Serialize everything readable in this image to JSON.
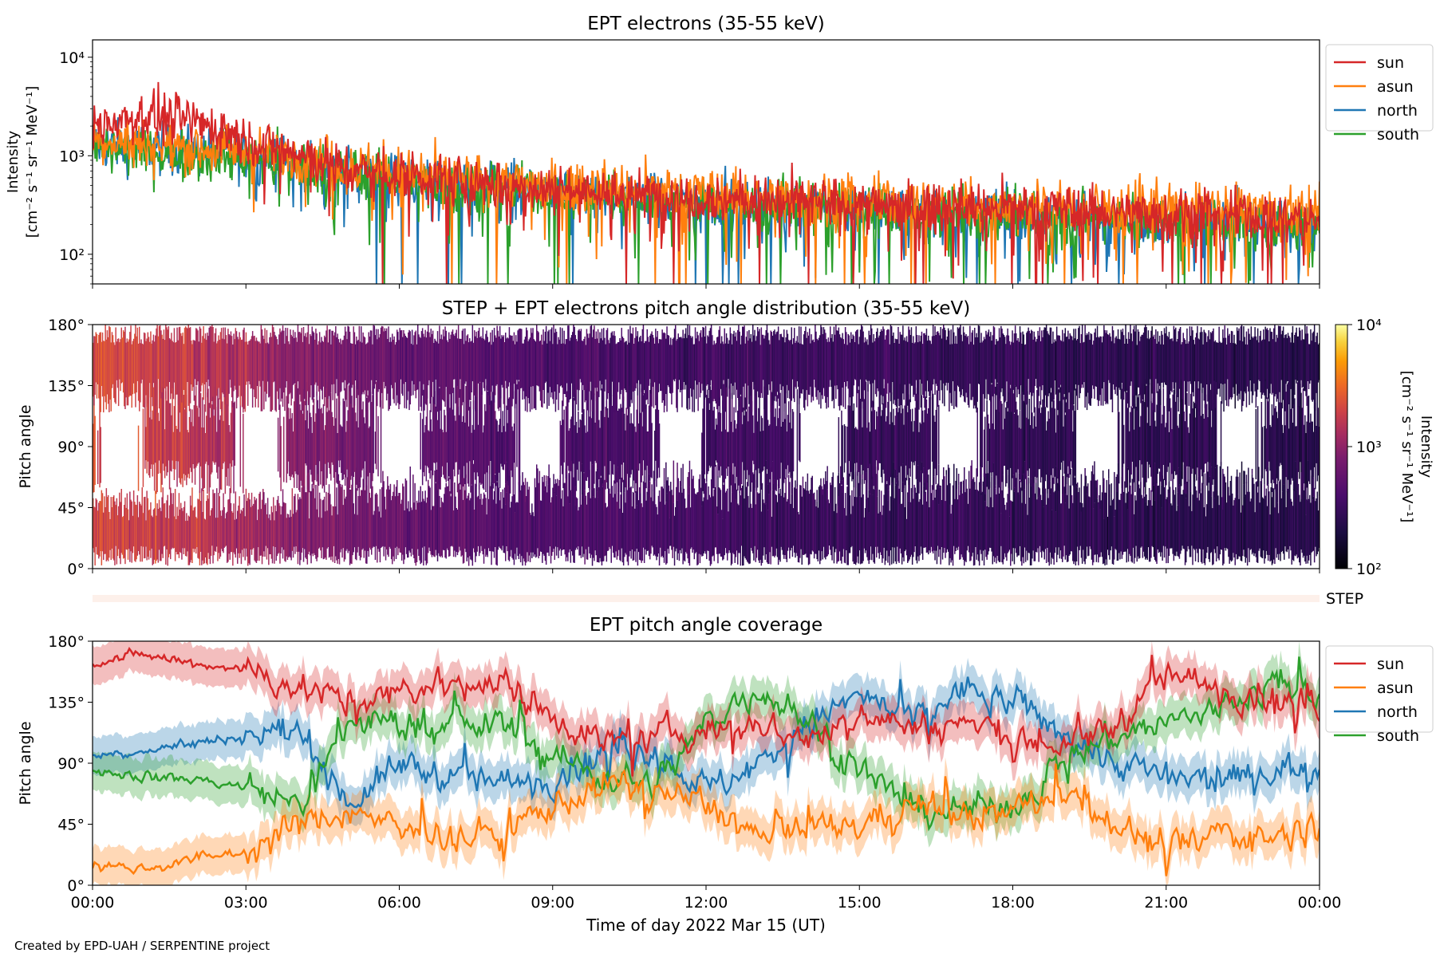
{
  "figure": {
    "credit": "Created by EPD-UAH / SERPENTINE project"
  },
  "colors": {
    "sun": "#d62728",
    "asun": "#ff7f0e",
    "north": "#1f77b4",
    "south": "#2ca02c"
  },
  "chart_data": [
    {
      "type": "line",
      "title": "EPT electrons (35-55 keV)",
      "ylabel": "Intensity",
      "ylabel_units": "[cm⁻² s⁻¹ sr⁻¹ MeV⁻¹]",
      "yscale": "log",
      "ylim": [
        50,
        15000
      ],
      "yticks": [
        100,
        1000,
        10000
      ],
      "ytick_labels": [
        "10²",
        "10³",
        "10⁴"
      ],
      "xlim": [
        "2022-03-15 00:00",
        "2022-03-16 00:00"
      ],
      "legend": "upper-right-outside",
      "x": [
        "2022-03-15 00:00",
        "2022-03-15 01:00",
        "2022-03-15 02:00",
        "2022-03-15 03:00",
        "2022-03-15 04:00",
        "2022-03-15 05:00",
        "2022-03-15 06:00",
        "2022-03-15 07:00",
        "2022-03-15 08:00",
        "2022-03-15 09:00",
        "2022-03-15 10:00",
        "2022-03-15 11:00",
        "2022-03-15 12:00",
        "2022-03-15 13:00",
        "2022-03-15 14:00",
        "2022-03-15 15:00",
        "2022-03-15 16:00",
        "2022-03-15 17:00",
        "2022-03-15 18:00",
        "2022-03-15 19:00",
        "2022-03-15 20:00",
        "2022-03-15 21:00",
        "2022-03-15 22:00",
        "2022-03-15 23:00",
        "2022-03-16 00:00"
      ],
      "series": [
        {
          "name": "sun",
          "values": [
            2000,
            2600,
            2200,
            1500,
            1000,
            750,
            650,
            550,
            500,
            470,
            430,
            400,
            380,
            360,
            340,
            320,
            310,
            300,
            290,
            280,
            270,
            260,
            250,
            240,
            230
          ]
        },
        {
          "name": "asun",
          "values": [
            1500,
            1300,
            1200,
            1100,
            1000,
            800,
            700,
            600,
            550,
            500,
            470,
            440,
            410,
            390,
            370,
            350,
            340,
            330,
            320,
            310,
            300,
            290,
            280,
            270,
            260
          ]
        },
        {
          "name": "north",
          "values": [
            1300,
            1200,
            1100,
            1000,
            850,
            700,
            600,
            520,
            470,
            430,
            400,
            370,
            340,
            320,
            300,
            280,
            270,
            260,
            250,
            240,
            230,
            220,
            210,
            200,
            190
          ]
        },
        {
          "name": "south",
          "values": [
            1200,
            1100,
            1000,
            950,
            800,
            680,
            580,
            500,
            450,
            420,
            390,
            360,
            330,
            310,
            290,
            270,
            260,
            250,
            240,
            230,
            220,
            210,
            200,
            190,
            180
          ]
        }
      ]
    },
    {
      "type": "heatmap",
      "title": "STEP + EPT electrons pitch angle distribution (35-55 keV)",
      "ylabel": "Pitch angle",
      "ylim": [
        0,
        180
      ],
      "yticks": [
        0,
        45,
        90,
        135,
        180
      ],
      "ytick_labels": [
        "0°",
        "45°",
        "90°",
        "135°",
        "180°"
      ],
      "xlim": [
        "2022-03-15 00:00",
        "2022-03-16 00:00"
      ],
      "colorbar": {
        "label": "Intensity",
        "units": "[cm⁻² s⁻¹ sr⁻¹ MeV⁻¹]",
        "scale": "log",
        "range": [
          100,
          10000
        ],
        "tick_labels": [
          "10²",
          "10³",
          "10⁴"
        ],
        "colormap": "inferno"
      },
      "step_label": "STEP",
      "x": [
        "2022-03-15 00:00",
        "2022-03-15 02:00",
        "2022-03-15 04:00",
        "2022-03-15 06:00",
        "2022-03-15 08:00",
        "2022-03-15 10:00",
        "2022-03-15 12:00",
        "2022-03-15 14:00",
        "2022-03-15 16:00",
        "2022-03-15 18:00",
        "2022-03-15 20:00",
        "2022-03-15 22:00",
        "2022-03-16 00:00"
      ],
      "typical_intensity": [
        2200,
        1600,
        900,
        600,
        450,
        400,
        350,
        320,
        300,
        280,
        260,
        250,
        240
      ]
    },
    {
      "type": "line",
      "title": "EPT pitch angle coverage",
      "ylabel": "Pitch angle",
      "xlabel": "Time of day 2022 Mar 15 (UT)",
      "ylim": [
        0,
        180
      ],
      "yticks": [
        0,
        45,
        90,
        135,
        180
      ],
      "ytick_labels": [
        "0°",
        "45°",
        "90°",
        "135°",
        "180°"
      ],
      "xlim": [
        "2022-03-15 00:00",
        "2022-03-16 00:00"
      ],
      "xtick_labels": [
        "00:00",
        "03:00",
        "06:00",
        "09:00",
        "12:00",
        "15:00",
        "18:00",
        "21:00",
        "00:00"
      ],
      "legend": "upper-right-outside",
      "x": [
        "2022-03-15 00:00",
        "2022-03-15 01:00",
        "2022-03-15 02:00",
        "2022-03-15 03:00",
        "2022-03-15 04:00",
        "2022-03-15 05:00",
        "2022-03-15 06:00",
        "2022-03-15 07:00",
        "2022-03-15 08:00",
        "2022-03-15 09:00",
        "2022-03-15 10:00",
        "2022-03-15 11:00",
        "2022-03-15 12:00",
        "2022-03-15 13:00",
        "2022-03-15 14:00",
        "2022-03-15 15:00",
        "2022-03-15 16:00",
        "2022-03-15 17:00",
        "2022-03-15 18:00",
        "2022-03-15 19:00",
        "2022-03-15 20:00",
        "2022-03-15 21:00",
        "2022-03-15 22:00",
        "2022-03-15 23:00",
        "2022-03-16 00:00"
      ],
      "series": [
        {
          "name": "sun",
          "values": [
            165,
            170,
            163,
            160,
            145,
            135,
            140,
            150,
            148,
            125,
            105,
            110,
            115,
            120,
            105,
            130,
            115,
            120,
            110,
            100,
            120,
            155,
            145,
            140,
            130
          ]
        },
        {
          "name": "asun",
          "values": [
            15,
            12,
            20,
            25,
            45,
            55,
            40,
            35,
            40,
            60,
            75,
            70,
            60,
            35,
            40,
            45,
            60,
            50,
            55,
            70,
            45,
            25,
            40,
            35,
            45
          ]
        },
        {
          "name": "north",
          "values": [
            95,
            100,
            105,
            110,
            115,
            60,
            90,
            80,
            75,
            80,
            100,
            100,
            70,
            90,
            120,
            140,
            120,
            145,
            135,
            110,
            90,
            80,
            75,
            85,
            90
          ]
        },
        {
          "name": "south",
          "values": [
            85,
            80,
            78,
            72,
            60,
            120,
            120,
            115,
            120,
            95,
            80,
            75,
            120,
            145,
            120,
            85,
            55,
            55,
            60,
            95,
            110,
            120,
            130,
            150,
            140
          ]
        }
      ]
    }
  ]
}
